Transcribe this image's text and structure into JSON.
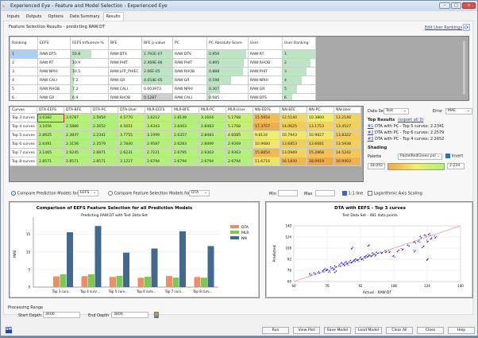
{
  "window": {
    "title": "Experienced Eye - Feature and Model Selection - Experienced Eye",
    "controls": [
      "minimize",
      "maximize",
      "close"
    ]
  },
  "tabs": [
    {
      "label": "Inputs"
    },
    {
      "label": "Outputs"
    },
    {
      "label": "Options"
    },
    {
      "label": "Data Summary"
    },
    {
      "label": "Results",
      "active": true
    }
  ],
  "feature_selection": {
    "title": "Feature Selection Results - predicting RAW:DT",
    "edit_link": "Edit User Rankings",
    "headers": [
      "Ranking",
      "EEFS",
      "EEFS Influence %",
      "BFE",
      "BFE p-value",
      "PC",
      "PC Absolute Score",
      "User",
      "User Ranking"
    ],
    "rows": [
      [
        "1",
        "RAW:DTS",
        "55.8",
        "RAW:DTS",
        "1.792E-07",
        "RAW:DTS",
        "0.959",
        "RAW:RT",
        "1"
      ],
      [
        "2",
        "RAW:RT",
        "10.9",
        "RAW:PHIT",
        "2.469E-06",
        "RAW:PHIT",
        "0.895",
        "RAW:RHOB",
        "2"
      ],
      [
        "3",
        "RAW:NPHI",
        "10.5",
        "RAW:LFP_PHIEC",
        "2.06E-05",
        "RAW:RHOB",
        "0.888",
        "RAW:PHIT",
        "3"
      ],
      [
        "4",
        "RAW:CALI",
        "7.2",
        "RAW:GR",
        "4.054E-05",
        "RAW:GR",
        "0.598",
        "RAW:NPHI",
        "4"
      ],
      [
        "5",
        "RAW:RHOB",
        "7.2",
        "RAW:CALI",
        "0.003973",
        "RAW:NPHI",
        "0.307",
        "RAW:GR",
        "5"
      ],
      [
        "6",
        "RAW:GR",
        "6.9",
        "RAW:RHOB",
        "0.1287",
        "RAW:CALI",
        "0.085",
        "RAW:DTS",
        "6"
      ]
    ],
    "influence_fraction": [
      0.558,
      0.109,
      0.105,
      0.072,
      0.072,
      0.069
    ],
    "pc_fraction": [
      0.959,
      0.895,
      0.888,
      0.598,
      0.307,
      0.085
    ],
    "user_rank_fraction": [
      1,
      0.86,
      0.72,
      0.58,
      0.44,
      0.3
    ]
  },
  "results_table": {
    "headers": [
      "Curves",
      "DTA-EEFS",
      "DTA-BFE",
      "DTA-PC",
      "DTA-User",
      "MLR-EEFS",
      "MLR-BFE",
      "MLR-PC",
      "MLR-User",
      "NN-EEFS",
      "NN-BFE",
      "NN-PC",
      "NN-User"
    ],
    "rows": [
      {
        "label": "Top 3 curves",
        "values": [
          "3.0382",
          "3.0787",
          "2.5954",
          "4.5770",
          "3.6212",
          "2.8149",
          "3.1604",
          "5.1768",
          "15.5954",
          "12.5140",
          "10.3860",
          "13.2146"
        ]
      },
      {
        "label": "Top 4 curves",
        "values": [
          "3.1056",
          "2.5886",
          "2.2652",
          "4.5651",
          "3.6343",
          "2.6403",
          "2.8483",
          "5.1768",
          "17.3757",
          "14.0625",
          "13.1753",
          "13.4527"
        ]
      },
      {
        "label": "Top 5 curves",
        "values": [
          "2.8925",
          "2.3847",
          "2.2341",
          "3.7755",
          "3.1999",
          "2.6357",
          "2.8483",
          "4.6085",
          "9.8124",
          "10.7943",
          "10.9827",
          "13.8322"
        ]
      },
      {
        "label": "Top 6 curves",
        "values": [
          "2.6491",
          "2.3156",
          "2.2579",
          "2.7840",
          "2.9587",
          "2.6283",
          "2.8499",
          "2.9369",
          "10.9680",
          "13.6853",
          "13.6681",
          "13.5938"
        ]
      },
      {
        "label": "Top 7 curves",
        "values": [
          "3.1465",
          "2.9245",
          "2.6871",
          "2.6231",
          "2.7221",
          "2.6795",
          "2.9363",
          "2.9363",
          "15.8854",
          "13.0949",
          "15.2868",
          "14.5242"
        ]
      },
      {
        "label": "Top 8 curves",
        "values": [
          "2.8571",
          "2.8571",
          "2.8571",
          "3.1227",
          "2.6794",
          "2.6794",
          "2.6794",
          "2.6794",
          "11.6716",
          "16.1830",
          "18.0919",
          "16.9403"
        ]
      }
    ],
    "selected_cell": "Top 3 curves / DTA-EEFS"
  },
  "side": {
    "data_set_label": "Data Set",
    "data_set": "Test",
    "error_label": "Error",
    "error": "MAE",
    "top_results_label": "Top Results",
    "export_link": "(export all 3)",
    "top_results": [
      {
        "num": "#1",
        "text": "DTA with PC - Top 5 curves: 2.2341"
      },
      {
        "num": "#2",
        "text": "DTA with PC - Top 6 curves: 2.2579"
      },
      {
        "num": "#3",
        "text": "DTA with PC - Top 4 curves: 2.2652"
      }
    ],
    "shading_label": "Shading",
    "palette_label": "Palette",
    "palette": "PastelRedGreen.pal",
    "invert_label": "Invert",
    "invert": true,
    "max_value": "18.092",
    "min_value": "2.234",
    "colors": {
      "low": "#aef07a",
      "mid": "#f2ee6a",
      "high": "#f0a848"
    }
  },
  "controls": {
    "compare_pred_label": "Compare Prediction Models for:",
    "compare_pred_value": "EEFS",
    "compare_pred_selected": true,
    "compare_fs_label": "Compare Feature Selection Models for:",
    "compare_fs_value": "DTA",
    "min_label": "Min",
    "min_value": "",
    "max_label": "Max",
    "max_value": "",
    "one_to_one_label": "1:1 line",
    "one_to_one": true,
    "log_label": "Logarithmic Axis Scaling",
    "log": false
  },
  "chart_data": [
    {
      "type": "bar",
      "title": "Comparison of EEFS Feature Selection for all Prediction Models",
      "subtitle": "Predicting RAW:DT with Test Data Set",
      "ylabel": "MAE",
      "xlabel": "",
      "categories": [
        "Top 3 curv...",
        "Top 4 curv...",
        "Top 5 curv...",
        "Top 6 curv...",
        "Top 7 curv...",
        "Top 8 curv..."
      ],
      "series": [
        {
          "name": "DTA",
          "color": "#e8906a",
          "values": [
            3.0382,
            3.1056,
            2.8925,
            2.6491,
            3.1465,
            2.8571
          ]
        },
        {
          "name": "MLR",
          "color": "#7dc855",
          "values": [
            3.6212,
            3.6343,
            3.1999,
            2.9587,
            2.7221,
            2.6794
          ]
        },
        {
          "name": "NN",
          "color": "#44698f",
          "values": [
            15.5954,
            17.3757,
            9.8124,
            10.968,
            15.8854,
            11.6716
          ]
        }
      ],
      "ylim": [
        0,
        19
      ],
      "yticks": [
        "0",
        "5",
        "10",
        "15"
      ],
      "grid": true,
      "legend": "right"
    },
    {
      "type": "scatter",
      "title": "DTA with EEFS - Top 3 curves",
      "subtitle": "Test Data Set - 481 data points",
      "xlabel": "Actual - RAW:DT",
      "ylabel": "Predicted",
      "xlim": [
        60,
        140
      ],
      "ylim": [
        60,
        140
      ],
      "xticks": [
        "60",
        "76",
        "92",
        "108",
        "124",
        "140"
      ],
      "yticks": [
        "60",
        "76",
        "92",
        "108",
        "124",
        "140"
      ],
      "one_to_one_line": true,
      "grid": true,
      "point_color": "#1a1aff",
      "line_color": "#e0a0a0",
      "points": [
        [
          68,
          70
        ],
        [
          70,
          72
        ],
        [
          72,
          73
        ],
        [
          74,
          75
        ],
        [
          75,
          78
        ],
        [
          76,
          77
        ],
        [
          78,
          80
        ],
        [
          79,
          78
        ],
        [
          80,
          82
        ],
        [
          82,
          83
        ],
        [
          83,
          86
        ],
        [
          84,
          84
        ],
        [
          85,
          88
        ],
        [
          86,
          85
        ],
        [
          87,
          89
        ],
        [
          88,
          88
        ],
        [
          89,
          90
        ],
        [
          90,
          92
        ],
        [
          91,
          90
        ],
        [
          92,
          94
        ],
        [
          93,
          92
        ],
        [
          94,
          95
        ],
        [
          95,
          96
        ],
        [
          96,
          98
        ],
        [
          97,
          97
        ],
        [
          98,
          100
        ],
        [
          99,
          98
        ],
        [
          100,
          101
        ],
        [
          102,
          101
        ],
        [
          104,
          103
        ],
        [
          106,
          103
        ],
        [
          108,
          96
        ],
        [
          110,
          104
        ],
        [
          112,
          106
        ],
        [
          115,
          112
        ],
        [
          118,
          116
        ],
        [
          120,
          118
        ],
        [
          121,
          124
        ],
        [
          122,
          110
        ],
        [
          123,
          126
        ],
        [
          124,
          118
        ],
        [
          125,
          128
        ],
        [
          126,
          122
        ],
        [
          128,
          124
        ],
        [
          124,
          92
        ],
        [
          118,
          104
        ],
        [
          88,
          108
        ],
        [
          96,
          112
        ],
        [
          80,
          74
        ],
        [
          77,
          74
        ]
      ]
    }
  ],
  "processing": {
    "label": "Processing Range",
    "start_label": "Start Depth",
    "start": "3600",
    "end_label": "End Depth",
    "end": "3800"
  },
  "buttons": [
    "Run",
    "View Plot",
    "Save Model",
    "Load Model",
    "Clear All",
    "Close",
    "Help"
  ],
  "status_icon": "SM"
}
